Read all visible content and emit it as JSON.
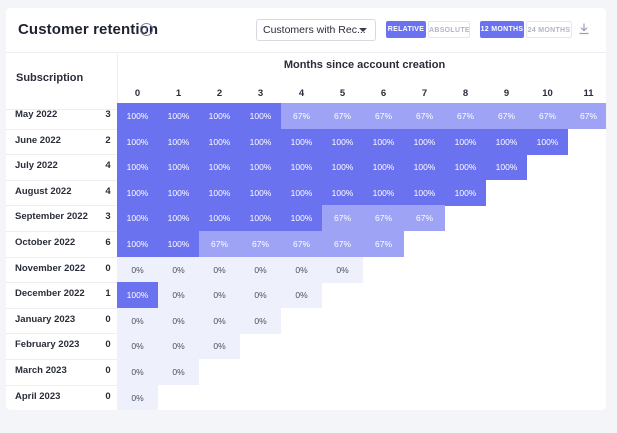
{
  "header": {
    "title": "Customer retention",
    "info_icon": "info-icon",
    "dropdown_value": "Customers with Rec...",
    "toggle_relative": "RELATIVE",
    "toggle_absolute": "ABSOLUTE",
    "toggle_12_months": "12 MONTHS",
    "toggle_24_months": "24 MONTHS",
    "download_icon": "download-icon"
  },
  "colors": {
    "accent": "#6b72f0",
    "mid": "#9ea3f6",
    "zero": "#eef0fb"
  },
  "table": {
    "row_header": "Subscription",
    "months_header": "Months since account creation",
    "columns": [
      "0",
      "1",
      "2",
      "3",
      "4",
      "5",
      "6",
      "7",
      "8",
      "9",
      "10",
      "11"
    ],
    "rows": [
      {
        "label": "May 2022",
        "count": "3",
        "cells": [
          "100%",
          "100%",
          "100%",
          "100%",
          "67%",
          "67%",
          "67%",
          "67%",
          "67%",
          "67%",
          "67%",
          "67%"
        ]
      },
      {
        "label": "June 2022",
        "count": "2",
        "cells": [
          "100%",
          "100%",
          "100%",
          "100%",
          "100%",
          "100%",
          "100%",
          "100%",
          "100%",
          "100%",
          "100%"
        ]
      },
      {
        "label": "July 2022",
        "count": "4",
        "cells": [
          "100%",
          "100%",
          "100%",
          "100%",
          "100%",
          "100%",
          "100%",
          "100%",
          "100%",
          "100%"
        ]
      },
      {
        "label": "August 2022",
        "count": "4",
        "cells": [
          "100%",
          "100%",
          "100%",
          "100%",
          "100%",
          "100%",
          "100%",
          "100%",
          "100%"
        ]
      },
      {
        "label": "September 2022",
        "count": "3",
        "cells": [
          "100%",
          "100%",
          "100%",
          "100%",
          "100%",
          "67%",
          "67%",
          "67%"
        ]
      },
      {
        "label": "October 2022",
        "count": "6",
        "cells": [
          "100%",
          "100%",
          "67%",
          "67%",
          "67%",
          "67%",
          "67%"
        ]
      },
      {
        "label": "November 2022",
        "count": "0",
        "cells": [
          "0%",
          "0%",
          "0%",
          "0%",
          "0%",
          "0%"
        ]
      },
      {
        "label": "December 2022",
        "count": "1",
        "cells": [
          "100%",
          "0%",
          "0%",
          "0%",
          "0%"
        ]
      },
      {
        "label": "January 2023",
        "count": "0",
        "cells": [
          "0%",
          "0%",
          "0%",
          "0%"
        ]
      },
      {
        "label": "February 2023",
        "count": "0",
        "cells": [
          "0%",
          "0%",
          "0%"
        ]
      },
      {
        "label": "March 2023",
        "count": "0",
        "cells": [
          "0%",
          "0%"
        ]
      },
      {
        "label": "April 2023",
        "count": "0",
        "cells": [
          "0%"
        ]
      }
    ]
  }
}
